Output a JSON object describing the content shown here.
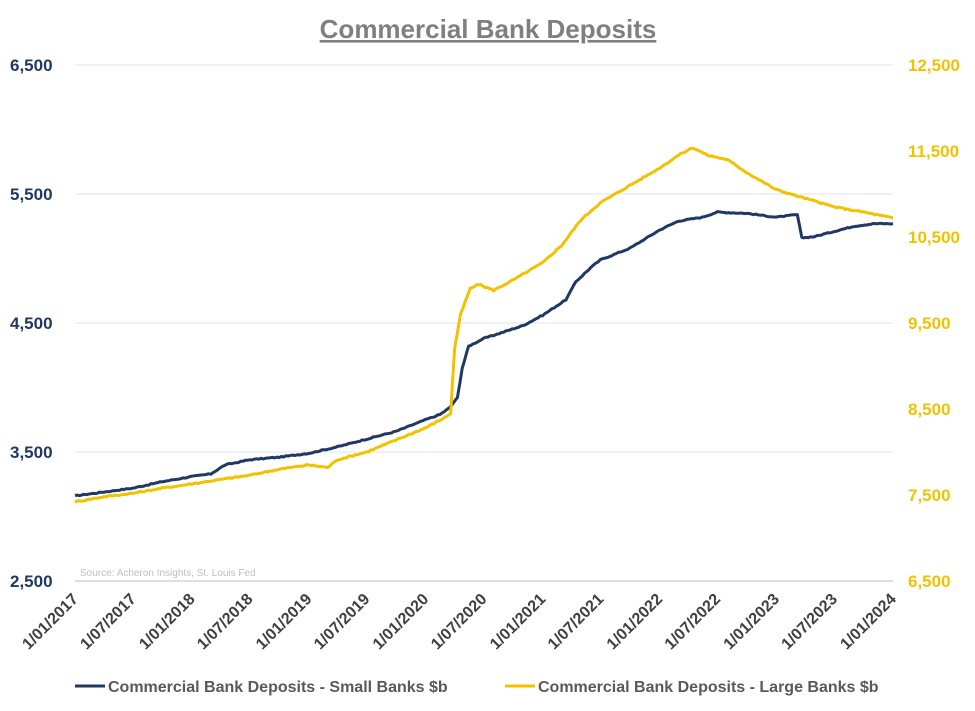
{
  "chart_data": {
    "type": "line",
    "title": "Commercial Bank Deposits",
    "source": "Source: Acheron Insights, St. Louis Fed",
    "x_ticks": [
      "1/01/2017",
      "1/07/2017",
      "1/01/2018",
      "1/07/2018",
      "1/01/2019",
      "1/07/2019",
      "1/01/2020",
      "1/07/2020",
      "1/01/2021",
      "1/07/2021",
      "1/01/2022",
      "1/07/2022",
      "1/01/2023",
      "1/07/2023",
      "1/01/2024"
    ],
    "xlim": [
      "2017-01-01",
      "2024-01-01"
    ],
    "y_left": {
      "ticks": [
        "2,500",
        "3,500",
        "4,500",
        "5,500",
        "6,500"
      ],
      "ylim": [
        2500,
        6500
      ],
      "color": "#1f3864"
    },
    "y_right": {
      "ticks": [
        "6,500",
        "7,500",
        "8,500",
        "9,500",
        "10,500",
        "11,500",
        "12,500"
      ],
      "ylim": [
        6500,
        12500
      ],
      "color": "#f2c200"
    },
    "grid": true,
    "legend_position": "bottom",
    "series": [
      {
        "name": "Commercial Bank Deposits - Small Banks $b",
        "axis": "left",
        "color": "#1f3864",
        "points": [
          [
            "2017-01-01",
            3160
          ],
          [
            "2017-04-01",
            3190
          ],
          [
            "2017-07-01",
            3220
          ],
          [
            "2017-10-01",
            3270
          ],
          [
            "2018-01-01",
            3310
          ],
          [
            "2018-03-01",
            3330
          ],
          [
            "2018-04-15",
            3400
          ],
          [
            "2018-07-01",
            3440
          ],
          [
            "2018-10-01",
            3460
          ],
          [
            "2019-01-01",
            3490
          ],
          [
            "2019-04-01",
            3540
          ],
          [
            "2019-07-01",
            3600
          ],
          [
            "2019-10-01",
            3660
          ],
          [
            "2020-01-01",
            3750
          ],
          [
            "2020-02-15",
            3790
          ],
          [
            "2020-03-15",
            3840
          ],
          [
            "2020-04-10",
            3920
          ],
          [
            "2020-04-25",
            4150
          ],
          [
            "2020-05-15",
            4320
          ],
          [
            "2020-07-01",
            4380
          ],
          [
            "2020-09-01",
            4430
          ],
          [
            "2020-11-01",
            4480
          ],
          [
            "2021-01-01",
            4560
          ],
          [
            "2021-03-15",
            4680
          ],
          [
            "2021-04-15",
            4820
          ],
          [
            "2021-06-01",
            4930
          ],
          [
            "2021-07-01",
            4990
          ],
          [
            "2021-10-01",
            5080
          ],
          [
            "2022-01-01",
            5220
          ],
          [
            "2022-03-01",
            5290
          ],
          [
            "2022-05-15",
            5320
          ],
          [
            "2022-07-01",
            5360
          ],
          [
            "2022-10-01",
            5350
          ],
          [
            "2023-01-01",
            5320
          ],
          [
            "2023-02-01",
            5330
          ],
          [
            "2023-03-08",
            5340
          ],
          [
            "2023-03-22",
            5160
          ],
          [
            "2023-05-01",
            5170
          ],
          [
            "2023-07-01",
            5210
          ],
          [
            "2023-09-01",
            5250
          ],
          [
            "2023-11-01",
            5270
          ],
          [
            "2024-01-01",
            5270
          ]
        ]
      },
      {
        "name": "Commercial Bank Deposits - Large Banks $b",
        "axis": "right",
        "color": "#f2c200",
        "points": [
          [
            "2017-01-01",
            7420
          ],
          [
            "2017-04-01",
            7480
          ],
          [
            "2017-07-01",
            7520
          ],
          [
            "2017-10-01",
            7580
          ],
          [
            "2018-01-01",
            7630
          ],
          [
            "2018-04-01",
            7680
          ],
          [
            "2018-07-01",
            7730
          ],
          [
            "2018-10-01",
            7800
          ],
          [
            "2019-01-01",
            7850
          ],
          [
            "2019-03-01",
            7820
          ],
          [
            "2019-04-01",
            7910
          ],
          [
            "2019-07-01",
            8000
          ],
          [
            "2019-10-01",
            8140
          ],
          [
            "2020-01-01",
            8280
          ],
          [
            "2020-03-01",
            8400
          ],
          [
            "2020-03-20",
            8450
          ],
          [
            "2020-04-01",
            9200
          ],
          [
            "2020-04-20",
            9600
          ],
          [
            "2020-05-20",
            9900
          ],
          [
            "2020-06-15",
            9950
          ],
          [
            "2020-08-01",
            9880
          ],
          [
            "2020-10-01",
            10000
          ],
          [
            "2021-01-01",
            10200
          ],
          [
            "2021-03-01",
            10400
          ],
          [
            "2021-05-01",
            10700
          ],
          [
            "2021-07-01",
            10900
          ],
          [
            "2021-10-01",
            11100
          ],
          [
            "2022-01-01",
            11300
          ],
          [
            "2022-03-01",
            11450
          ],
          [
            "2022-04-15",
            11540
          ],
          [
            "2022-06-01",
            11450
          ],
          [
            "2022-08-01",
            11400
          ],
          [
            "2022-10-01",
            11250
          ],
          [
            "2023-01-01",
            11050
          ],
          [
            "2023-04-01",
            10950
          ],
          [
            "2023-07-01",
            10850
          ],
          [
            "2023-10-01",
            10790
          ],
          [
            "2024-01-01",
            10720
          ]
        ]
      }
    ]
  }
}
